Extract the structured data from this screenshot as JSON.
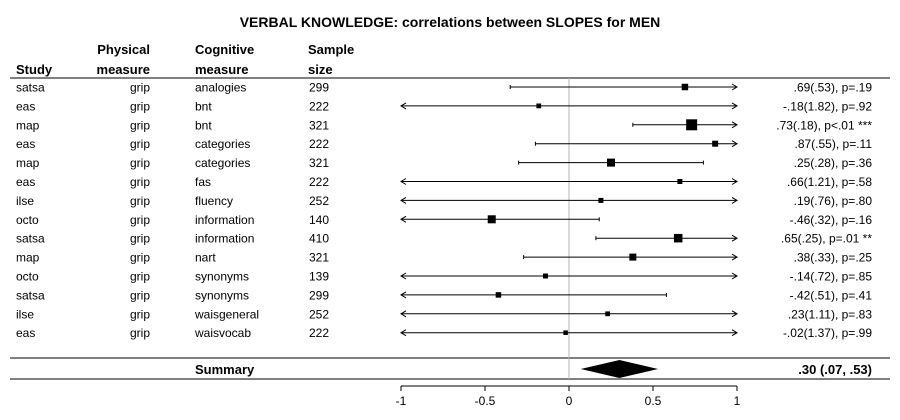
{
  "chart_data": {
    "type": "forest",
    "title": "VERBAL KNOWLEDGE: correlations between SLOPES for MEN",
    "columns": {
      "study": "Study",
      "physical": [
        "Physical",
        "measure"
      ],
      "cognitive": [
        "Cognitive",
        "measure"
      ],
      "sample": [
        "Sample",
        "size"
      ]
    },
    "x_ticks": [
      -1,
      -0.5,
      0,
      0.5,
      1
    ],
    "x_tick_labels": [
      "-1",
      "-0.5",
      "0",
      "0.5",
      "1"
    ],
    "xlim": [
      -1,
      1
    ],
    "rows": [
      {
        "study": "satsa",
        "physical": "grip",
        "cognitive": "analogies",
        "n": "299",
        "estimate": 0.69,
        "lo": -0.35,
        "hi": 1.0,
        "arrow_left": false,
        "arrow_right": true,
        "weight": 0.7,
        "label": ".69(.53), p=.19"
      },
      {
        "study": "eas",
        "physical": "grip",
        "cognitive": "bnt",
        "n": "222",
        "estimate": -0.18,
        "lo": -1.0,
        "hi": 1.0,
        "arrow_left": true,
        "arrow_right": true,
        "weight": 0.35,
        "label": "-.18(1.82), p=.92"
      },
      {
        "study": "map",
        "physical": "grip",
        "cognitive": "bnt",
        "n": "321",
        "estimate": 0.73,
        "lo": 0.38,
        "hi": 1.0,
        "arrow_left": false,
        "arrow_right": true,
        "weight": 1.6,
        "label": ".73(.18), p<.01 ***"
      },
      {
        "study": "eas",
        "physical": "grip",
        "cognitive": "categories",
        "n": "222",
        "estimate": 0.87,
        "lo": -0.2,
        "hi": 1.0,
        "arrow_left": false,
        "arrow_right": true,
        "weight": 0.6,
        "label": ".87(.55), p=.11"
      },
      {
        "study": "map",
        "physical": "grip",
        "cognitive": "categories",
        "n": "321",
        "estimate": 0.25,
        "lo": -0.3,
        "hi": 0.8,
        "arrow_left": false,
        "arrow_right": false,
        "weight": 1.0,
        "label": ".25(.28), p=.36"
      },
      {
        "study": "eas",
        "physical": "grip",
        "cognitive": "fas",
        "n": "222",
        "estimate": 0.66,
        "lo": -1.0,
        "hi": 1.0,
        "arrow_left": true,
        "arrow_right": true,
        "weight": 0.4,
        "label": ".66(1.21), p=.58"
      },
      {
        "study": "ilse",
        "physical": "grip",
        "cognitive": "fluency",
        "n": "252",
        "estimate": 0.19,
        "lo": -1.0,
        "hi": 1.0,
        "arrow_left": true,
        "arrow_right": true,
        "weight": 0.4,
        "label": ".19(.76), p=.80"
      },
      {
        "study": "octo",
        "physical": "grip",
        "cognitive": "information",
        "n": "140",
        "estimate": -0.46,
        "lo": -1.0,
        "hi": 0.18,
        "arrow_left": true,
        "arrow_right": false,
        "weight": 1.0,
        "label": "-.46(.32), p=.16"
      },
      {
        "study": "satsa",
        "physical": "grip",
        "cognitive": "information",
        "n": "410",
        "estimate": 0.65,
        "lo": 0.16,
        "hi": 1.0,
        "arrow_left": false,
        "arrow_right": true,
        "weight": 1.1,
        "label": ".65(.25), p=.01 **"
      },
      {
        "study": "map",
        "physical": "grip",
        "cognitive": "nart",
        "n": "321",
        "estimate": 0.38,
        "lo": -0.27,
        "hi": 1.0,
        "arrow_left": false,
        "arrow_right": true,
        "weight": 0.8,
        "label": ".38(.33), p=.25"
      },
      {
        "study": "octo",
        "physical": "grip",
        "cognitive": "synonyms",
        "n": "139",
        "estimate": -0.14,
        "lo": -1.0,
        "hi": 1.0,
        "arrow_left": true,
        "arrow_right": true,
        "weight": 0.4,
        "label": "-.14(.72), p=.85"
      },
      {
        "study": "satsa",
        "physical": "grip",
        "cognitive": "synonyms",
        "n": "299",
        "estimate": -0.42,
        "lo": -1.0,
        "hi": 0.58,
        "arrow_left": true,
        "arrow_right": false,
        "weight": 0.5,
        "label": "-.42(.51), p=.41"
      },
      {
        "study": "ilse",
        "physical": "grip",
        "cognitive": "waisgeneral",
        "n": "252",
        "estimate": 0.23,
        "lo": -1.0,
        "hi": 1.0,
        "arrow_left": true,
        "arrow_right": true,
        "weight": 0.35,
        "label": ".23(1.11), p=.83"
      },
      {
        "study": "eas",
        "physical": "grip",
        "cognitive": "waisvocab",
        "n": "222",
        "estimate": -0.02,
        "lo": -1.0,
        "hi": 1.0,
        "arrow_left": true,
        "arrow_right": true,
        "weight": 0.3,
        "label": "-.02(1.37), p=.99"
      }
    ],
    "summary": {
      "label": "Summary",
      "estimate": 0.3,
      "lo": 0.07,
      "hi": 0.53,
      "text": ".30 (.07, .53)"
    }
  }
}
